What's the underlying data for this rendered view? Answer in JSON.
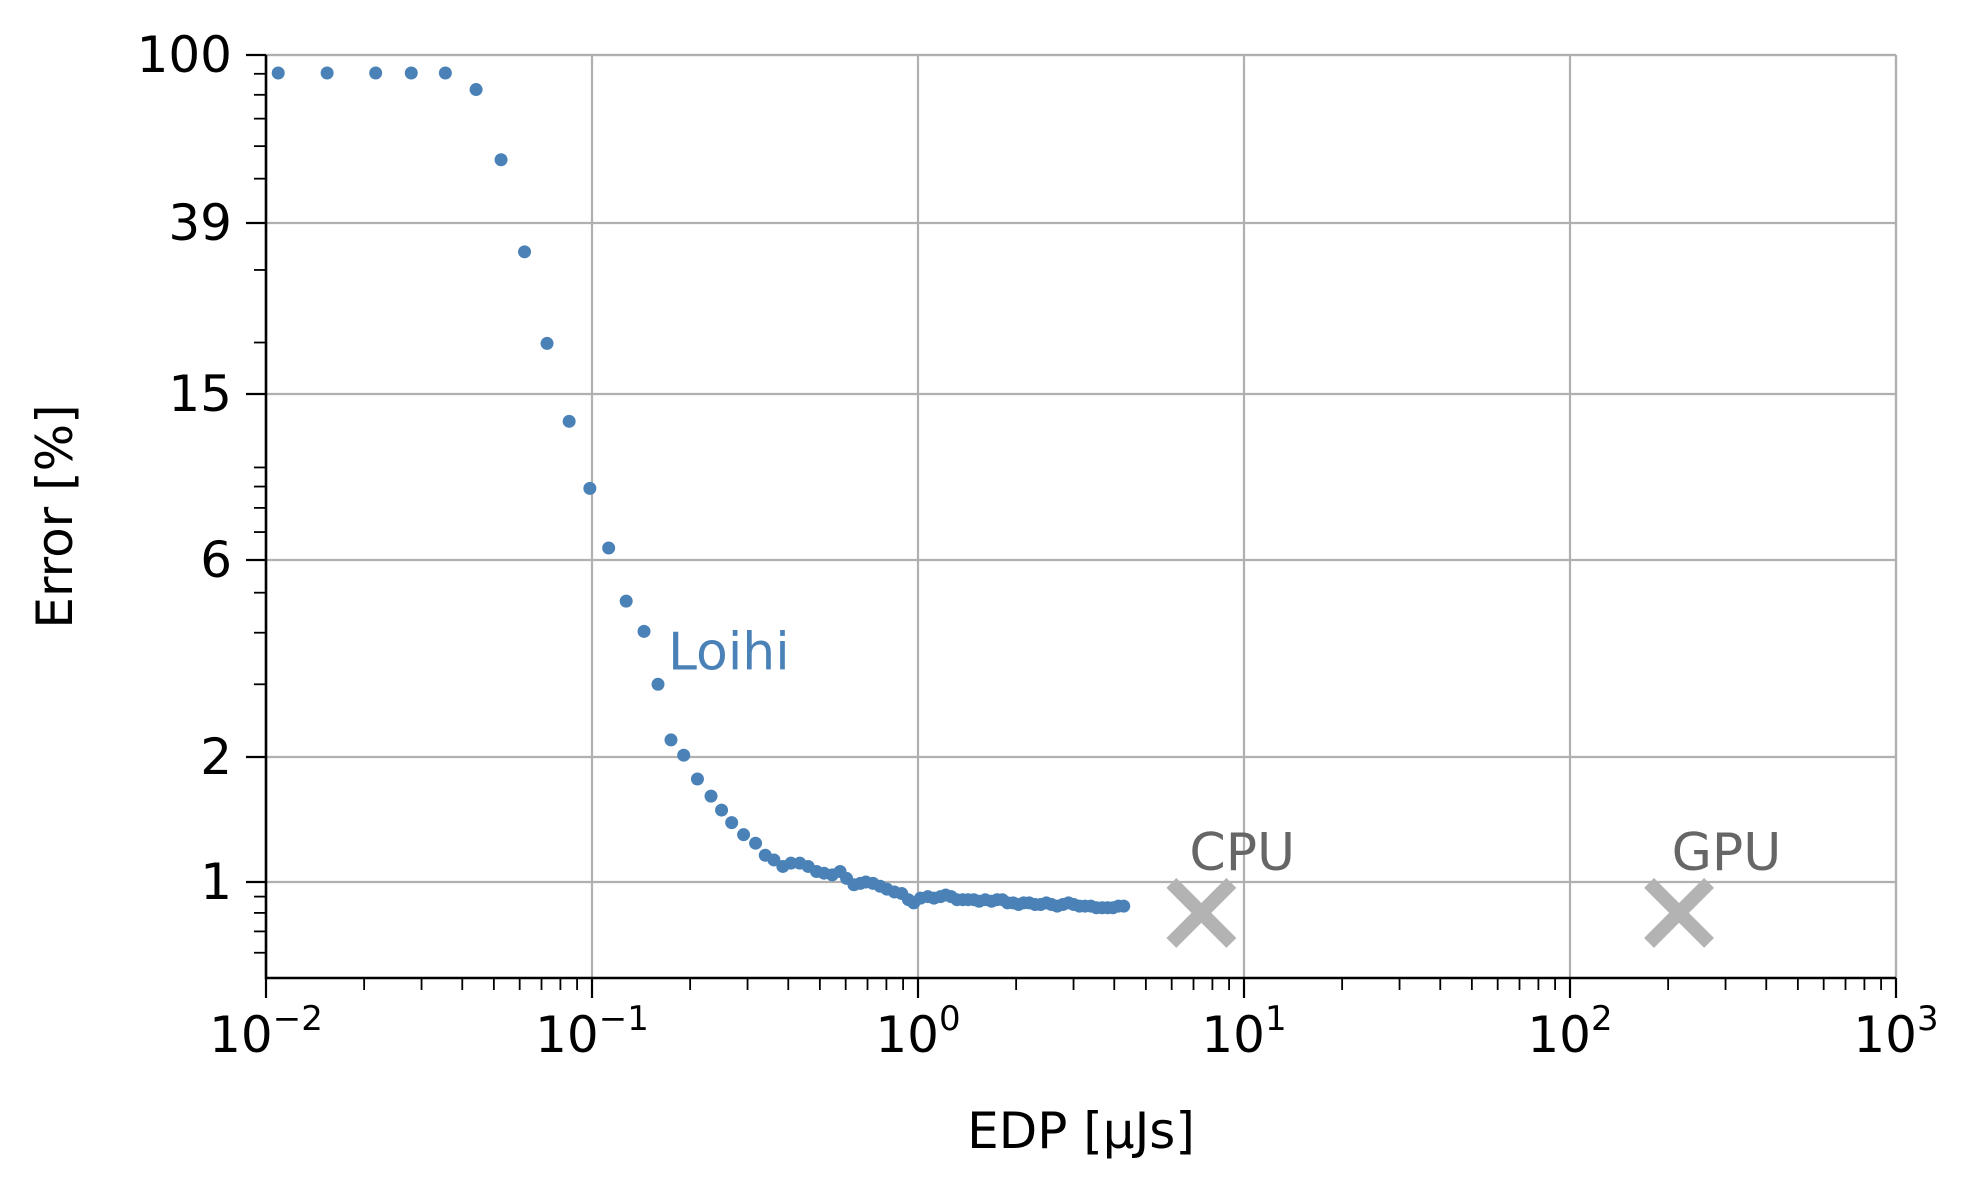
{
  "chart_data": {
    "type": "scatter",
    "title": "",
    "xlabel": "EDP [μJs]",
    "ylabel": "Error [%]",
    "xscale": "log",
    "yscale": "custom-log (error shown on log(error) scale)",
    "xlim": [
      0.01,
      1000
    ],
    "ylim": [
      0.5,
      100
    ],
    "grid": true,
    "legend": "none",
    "x_ticks": [
      {
        "base": "10",
        "exp": "−2",
        "value": 0.01
      },
      {
        "base": "10",
        "exp": "−1",
        "value": 0.1
      },
      {
        "base": "10",
        "exp": "0",
        "value": 1
      },
      {
        "base": "10",
        "exp": "1",
        "value": 10
      },
      {
        "base": "10",
        "exp": "2",
        "value": 100
      },
      {
        "base": "10",
        "exp": "3",
        "value": 1000
      }
    ],
    "y_ticks": [
      {
        "label": "100",
        "value": 100
      },
      {
        "label": "39",
        "value": 39
      },
      {
        "label": "15",
        "value": 15
      },
      {
        "label": "6",
        "value": 6
      },
      {
        "label": "2",
        "value": 2
      },
      {
        "label": "1",
        "value": 1
      }
    ],
    "series": [
      {
        "name": "Loihi",
        "color": "#4a82b8",
        "marker": "dot",
        "points": [
          [
            0.0109,
            90.4
          ],
          [
            0.0154,
            90.4
          ],
          [
            0.0217,
            90.4
          ],
          [
            0.0279,
            90.4
          ],
          [
            0.0355,
            90.4
          ],
          [
            0.0441,
            82.4
          ],
          [
            0.0526,
            55.6
          ],
          [
            0.0621,
            33.2
          ],
          [
            0.0728,
            19.9
          ],
          [
            0.0851,
            12.9
          ],
          [
            0.0985,
            8.91
          ],
          [
            0.1125,
            6.41
          ],
          [
            0.1273,
            4.77
          ],
          [
            0.1444,
            4.03
          ],
          [
            0.1594,
            3.0
          ],
          [
            0.1747,
            2.2
          ],
          [
            0.1911,
            2.02
          ],
          [
            0.2106,
            1.77
          ],
          [
            0.2318,
            1.61
          ],
          [
            0.2497,
            1.49
          ],
          [
            0.2682,
            1.39
          ],
          [
            0.2917,
            1.3
          ],
          [
            0.3175,
            1.24
          ],
          [
            0.34,
            1.16
          ],
          [
            0.3615,
            1.13
          ],
          [
            0.385,
            1.09
          ],
          [
            0.4076,
            1.11
          ],
          [
            0.434,
            1.11
          ],
          [
            0.4604,
            1.09
          ],
          [
            0.4883,
            1.06
          ],
          [
            0.5149,
            1.05
          ],
          [
            0.5456,
            1.04
          ],
          [
            0.5767,
            1.06
          ],
          [
            0.6039,
            1.02
          ],
          [
            0.636,
            0.98
          ],
          [
            0.6653,
            0.99
          ],
          [
            0.692,
            1.0
          ],
          [
            0.7279,
            0.99
          ],
          [
            0.7654,
            0.97
          ],
          [
            0.8027,
            0.95
          ],
          [
            0.8471,
            0.93
          ],
          [
            0.8914,
            0.92
          ],
          [
            0.9348,
            0.88
          ],
          [
            0.9704,
            0.86
          ],
          [
            1.0181,
            0.89
          ],
          [
            1.0717,
            0.9
          ],
          [
            1.1192,
            0.89
          ],
          [
            1.1722,
            0.9
          ],
          [
            1.2165,
            0.91
          ],
          [
            1.2644,
            0.9
          ],
          [
            1.3171,
            0.88
          ],
          [
            1.3723,
            0.88
          ],
          [
            1.4256,
            0.88
          ],
          [
            1.4839,
            0.88
          ],
          [
            1.5399,
            0.87
          ],
          [
            1.6085,
            0.88
          ],
          [
            1.6814,
            0.87
          ],
          [
            1.7478,
            0.88
          ],
          [
            1.8149,
            0.88
          ],
          [
            1.8823,
            0.86
          ],
          [
            1.9582,
            0.86
          ],
          [
            2.0332,
            0.85
          ],
          [
            2.1085,
            0.86
          ],
          [
            2.1936,
            0.86
          ],
          [
            2.2864,
            0.85
          ],
          [
            2.3778,
            0.85
          ],
          [
            2.4754,
            0.86
          ],
          [
            2.5677,
            0.85
          ],
          [
            2.6724,
            0.84
          ],
          [
            2.7826,
            0.85
          ],
          [
            2.8948,
            0.86
          ],
          [
            3.0045,
            0.85
          ],
          [
            3.1278,
            0.84
          ],
          [
            3.2535,
            0.84
          ],
          [
            3.3911,
            0.84
          ],
          [
            3.5266,
            0.83
          ],
          [
            3.6712,
            0.83
          ],
          [
            3.8169,
            0.83
          ],
          [
            3.9624,
            0.83
          ],
          [
            4.1176,
            0.84
          ],
          [
            4.2762,
            0.84
          ]
        ]
      },
      {
        "name": "CPU",
        "color": "#b3b3b3",
        "marker": "x",
        "points": [
          [
            7.4,
            0.8
          ]
        ]
      },
      {
        "name": "GPU",
        "color": "#b3b3b3",
        "marker": "x",
        "points": [
          [
            216,
            0.8
          ]
        ]
      }
    ],
    "annotations": [
      {
        "text": "Loihi",
        "color": "#4a82b8",
        "anchor_x": 0.171,
        "anchor_y": 3.05
      },
      {
        "text": "CPU",
        "color": "#666666",
        "anchor_x": 6.8,
        "anchor_y": 1.0
      },
      {
        "text": "GPU",
        "color": "#666666",
        "anchor_x": 205,
        "anchor_y": 1.0
      }
    ]
  }
}
